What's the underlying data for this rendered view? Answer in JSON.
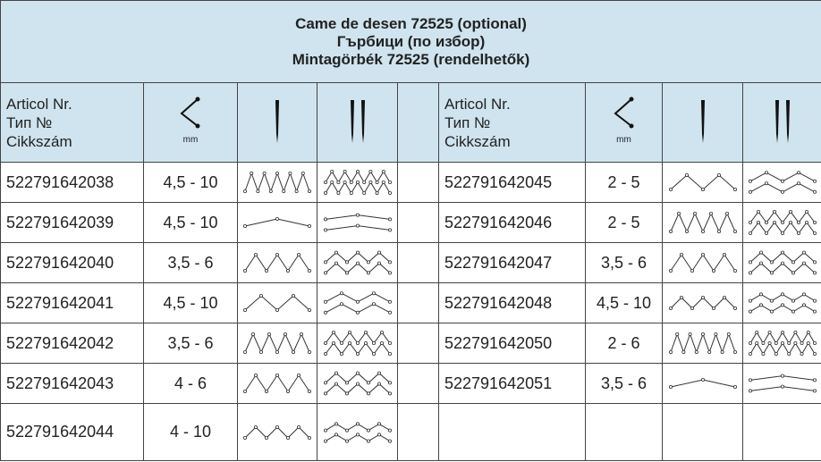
{
  "header": {
    "title_lines": [
      "Came de desen 72525 (optional)",
      "Гърбици (по избор)",
      "Mintagörbék 72525 (rendelhetők)"
    ]
  },
  "table": {
    "column_header": [
      "Articol Nr.",
      "Тип №",
      "Cikkszám"
    ],
    "unit": "mm",
    "left_rows": [
      [
        "522791642038",
        "4,5 - 10"
      ],
      [
        "522791642039",
        "4,5 - 10"
      ],
      [
        "522791642040",
        "3,5 - 6"
      ],
      [
        "522791642041",
        "4,5 - 10"
      ],
      [
        "522791642042",
        "3,5 - 6"
      ],
      [
        "522791642043",
        "4 - 6"
      ],
      [
        "522791642044",
        "4 - 10"
      ]
    ],
    "right_rows": [
      [
        "522791642045",
        "2 - 5"
      ],
      [
        "522791642046",
        "2 - 5"
      ],
      [
        "522791642047",
        "3,5 - 6"
      ],
      [
        "522791642048",
        "4,5 - 10"
      ],
      [
        "522791642050",
        "2 - 6"
      ],
      [
        "522791642051",
        "3,5 - 6"
      ]
    ]
  }
}
